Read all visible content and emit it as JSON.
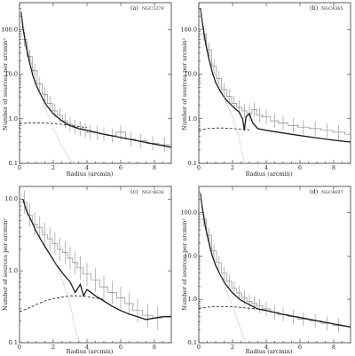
{
  "chart_data": [
    {
      "type": "line",
      "panel_label": "(a)",
      "galaxy": "NGC3379",
      "xlabel": "Radius (arcmin)",
      "ylabel": "Number of sources per arcmin²",
      "xlim": [
        0,
        9
      ],
      "ylim": [
        0.1,
        400
      ],
      "y_scale": "log",
      "x_ticks": [
        "0",
        "2",
        "4",
        "6",
        "8"
      ],
      "y_ticks": [
        "0.1",
        "1.0",
        "10.0",
        "100.0"
      ],
      "series": [
        {
          "style": "histogram",
          "x": [
            0.3,
            0.6,
            0.9,
            1.2,
            1.5,
            1.8,
            2.1,
            2.4,
            2.7,
            3.0,
            3.3,
            3.6,
            3.9,
            4.2,
            4.6,
            5.0,
            5.5,
            6.0,
            6.6,
            7.2,
            7.9,
            8.6
          ],
          "values": [
            60,
            25,
            12,
            6,
            3.5,
            2.2,
            1.5,
            1.2,
            0.9,
            0.75,
            0.65,
            0.6,
            0.55,
            0.5,
            0.48,
            0.45,
            0.42,
            0.5,
            0.35,
            0.32,
            0.28,
            0.26
          ]
        },
        {
          "style": "solid",
          "x": [
            0.1,
            0.2,
            0.4,
            0.6,
            0.8,
            1.0,
            1.3,
            1.6,
            2.0,
            2.5,
            3.0,
            3.5,
            4.0,
            4.5,
            5.0,
            6.0,
            7.0,
            8.0,
            9.0
          ],
          "values": [
            250,
            110,
            40,
            18,
            9,
            5.5,
            3.2,
            2.0,
            1.3,
            0.9,
            0.7,
            0.6,
            0.55,
            0.5,
            0.45,
            0.38,
            0.32,
            0.27,
            0.23
          ]
        },
        {
          "style": "dashed",
          "x": [
            0,
            0.5,
            1,
            1.5,
            2,
            2.5,
            3,
            3.5,
            4
          ],
          "values": [
            0.78,
            0.8,
            0.81,
            0.8,
            0.78,
            0.75,
            0.71,
            0.67,
            0.63
          ]
        },
        {
          "style": "dotted",
          "x": [
            0.1,
            0.3,
            0.6,
            1.0,
            1.5,
            2.0,
            2.5,
            3.0,
            3.3
          ],
          "values": [
            240,
            90,
            25,
            6.5,
            1.8,
            0.6,
            0.25,
            0.12,
            0.1
          ]
        }
      ]
    },
    {
      "type": "line",
      "panel_label": "(b)",
      "galaxy": "NGC4365",
      "xlabel": "Radius (arcmin)",
      "ylabel": "Number of sources per arcmin²",
      "xlim": [
        0,
        9
      ],
      "ylim": [
        0.1,
        400
      ],
      "y_scale": "log",
      "x_ticks": [
        "0",
        "2",
        "4",
        "6",
        "8"
      ],
      "y_ticks": [
        "0.1",
        "1.0",
        "10.0",
        "100.0"
      ],
      "series": [
        {
          "style": "histogram",
          "x": [
            0.3,
            0.6,
            0.9,
            1.2,
            1.5,
            1.8,
            2.1,
            2.4,
            2.7,
            3.0,
            3.3,
            3.6,
            4.0,
            4.5,
            5.0,
            5.6,
            6.2,
            6.9,
            7.6,
            8.3,
            9.0
          ],
          "values": [
            80,
            35,
            15,
            8,
            4.5,
            3.2,
            2.2,
            1.8,
            1.5,
            1.3,
            1.6,
            1.2,
            1.1,
            0.9,
            0.8,
            0.7,
            0.65,
            0.6,
            0.55,
            0.5,
            0.45
          ]
        },
        {
          "style": "solid",
          "x": [
            0.1,
            0.2,
            0.4,
            0.6,
            0.8,
            1.0,
            1.3,
            1.6,
            2.0,
            2.4,
            2.6,
            2.7,
            2.8,
            3.0,
            3.2,
            3.5,
            4.0,
            5.0,
            6.0,
            7.0,
            8.0,
            9.0
          ],
          "values": [
            300,
            150,
            50,
            22,
            11,
            6.5,
            4.0,
            2.7,
            1.9,
            1.4,
            1.0,
            0.55,
            1.1,
            1.3,
            0.8,
            0.6,
            0.55,
            0.48,
            0.42,
            0.37,
            0.33,
            0.3
          ]
        },
        {
          "style": "dashed",
          "x": [
            0,
            0.5,
            1,
            1.5,
            2,
            2.5,
            3
          ],
          "values": [
            0.55,
            0.6,
            0.62,
            0.62,
            0.6,
            0.58,
            0.56
          ]
        },
        {
          "style": "dotted",
          "x": [
            0.1,
            0.3,
            0.6,
            1.0,
            1.5,
            2.0,
            2.4,
            2.7
          ],
          "values": [
            280,
            110,
            32,
            9,
            3,
            1.1,
            0.35,
            0.1
          ]
        }
      ]
    },
    {
      "type": "line",
      "panel_label": "(c)",
      "galaxy": "NGC4636",
      "xlabel": "Radius (arcmin)",
      "ylabel": "Number of sources per arcmin²",
      "xlim": [
        0,
        9
      ],
      "ylim": [
        0.1,
        15
      ],
      "y_scale": "log",
      "x_ticks": [
        "0",
        "2",
        "4",
        "6",
        "8"
      ],
      "y_ticks": [
        "0.1",
        "1.0",
        "10.0"
      ],
      "series": [
        {
          "style": "histogram",
          "x": [
            0.3,
            0.6,
            0.9,
            1.2,
            1.5,
            1.8,
            2.1,
            2.4,
            2.7,
            3.0,
            3.3,
            3.6,
            4.0,
            4.5,
            5.0,
            5.5,
            6.0,
            6.5,
            7.0,
            7.6,
            8.2
          ],
          "values": [
            9,
            6,
            4.5,
            4,
            3.2,
            2.8,
            2.4,
            2.0,
            1.8,
            1.5,
            1.3,
            1.1,
            0.9,
            0.75,
            0.6,
            0.5,
            0.42,
            0.35,
            0.28,
            0.24,
            0.22
          ]
        },
        {
          "style": "solid",
          "x": [
            0.2,
            0.4,
            0.7,
            1.0,
            1.4,
            1.8,
            2.2,
            2.6,
            3.0,
            3.3,
            3.6,
            3.8,
            4.0,
            4.5,
            5.0,
            5.5,
            6.0,
            6.5,
            7.0,
            7.5,
            8.0,
            8.5,
            9.0
          ],
          "values": [
            10,
            7,
            5,
            3.5,
            2.4,
            1.7,
            1.2,
            0.9,
            0.7,
            0.5,
            0.65,
            0.45,
            0.55,
            0.45,
            0.38,
            0.32,
            0.28,
            0.25,
            0.23,
            0.21,
            0.22,
            0.23,
            0.23
          ]
        },
        {
          "style": "dashed",
          "x": [
            0,
            0.5,
            1,
            1.5,
            2,
            2.5,
            3,
            3.5,
            4,
            4.5,
            5
          ],
          "values": [
            0.27,
            0.3,
            0.34,
            0.38,
            0.41,
            0.43,
            0.45,
            0.45,
            0.44,
            0.42,
            0.4
          ]
        },
        {
          "style": "dotted",
          "x": [
            2.0,
            2.5,
            3.0,
            3.2,
            3.4,
            3.6
          ],
          "values": [
            1.5,
            0.8,
            0.35,
            0.2,
            0.13,
            0.1
          ]
        }
      ]
    },
    {
      "type": "line",
      "panel_label": "(d)",
      "galaxy": "NGC4697",
      "xlabel": "Radius (arcmin)",
      "ylabel": "Number of sources per arcmin²",
      "xlim": [
        0,
        9
      ],
      "ylim": [
        0.1,
        400
      ],
      "y_scale": "log",
      "x_ticks": [
        "0",
        "2",
        "4",
        "6",
        "8"
      ],
      "y_ticks": [
        "0.1",
        "1.0",
        "10.0",
        "100.0"
      ],
      "series": [
        {
          "style": "histogram",
          "x": [
            0.3,
            0.6,
            0.9,
            1.2,
            1.5,
            1.8,
            2.1,
            2.4,
            2.7,
            3.0,
            3.3,
            3.6,
            4.0,
            4.5,
            5.0,
            5.6,
            6.2,
            6.9,
            7.6,
            8.3
          ],
          "values": [
            70,
            30,
            13,
            7,
            4,
            2.6,
            1.8,
            1.4,
            1.1,
            0.9,
            0.8,
            0.7,
            0.6,
            0.5,
            0.45,
            0.4,
            0.35,
            0.32,
            0.28,
            0.25
          ]
        },
        {
          "style": "solid",
          "x": [
            0.1,
            0.2,
            0.4,
            0.6,
            0.8,
            1.0,
            1.3,
            1.6,
            2.0,
            2.5,
            3.0,
            3.5,
            4.0,
            5.0,
            6.0,
            7.0,
            8.0,
            9.0
          ],
          "values": [
            280,
            130,
            45,
            20,
            10,
            6,
            3.5,
            2.2,
            1.4,
            0.95,
            0.75,
            0.6,
            0.55,
            0.45,
            0.38,
            0.32,
            0.27,
            0.23
          ]
        },
        {
          "style": "dashed",
          "x": [
            0,
            0.5,
            1,
            1.5,
            2,
            2.5,
            3,
            3.5
          ],
          "values": [
            0.62,
            0.66,
            0.68,
            0.68,
            0.67,
            0.65,
            0.62,
            0.6
          ]
        },
        {
          "style": "dotted",
          "x": [
            0.1,
            0.3,
            0.6,
            1.0,
            1.5,
            2.0,
            2.5,
            2.8
          ],
          "values": [
            260,
            100,
            28,
            7,
            2.2,
            0.7,
            0.2,
            0.1
          ]
        }
      ]
    }
  ]
}
